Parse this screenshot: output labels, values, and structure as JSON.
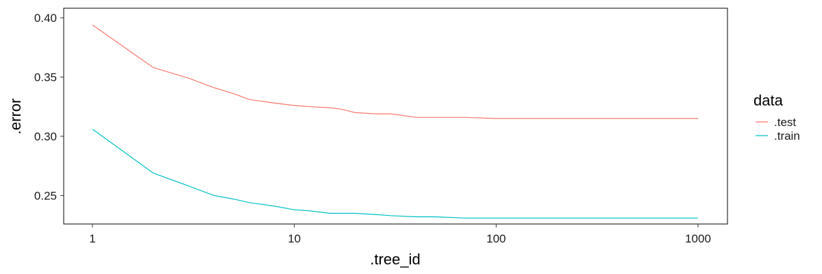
{
  "chart_data": {
    "type": "line",
    "xlabel": ".tree_id",
    "ylabel": ".error",
    "x_scale": "log10",
    "xlim": [
      1,
      1000
    ],
    "ylim": [
      0.23,
      0.4
    ],
    "x_ticks": [
      1,
      10,
      100,
      1000
    ],
    "x_tick_labels": [
      "1",
      "10",
      "100",
      "1000"
    ],
    "y_ticks": [
      0.25,
      0.3,
      0.35,
      0.4
    ],
    "y_tick_labels": [
      "0.25",
      "0.30",
      "0.35",
      "0.40"
    ],
    "grid": false,
    "legend": {
      "title": "data",
      "position": "right"
    },
    "series": [
      {
        "name": ".test",
        "color": "#F8766D",
        "x": [
          1,
          2,
          3,
          4,
          5,
          6,
          8,
          10,
          12,
          15,
          17,
          20,
          25,
          30,
          40,
          50,
          70,
          100,
          150,
          200,
          300,
          500,
          700,
          1000
        ],
        "y": [
          0.394,
          0.358,
          0.349,
          0.341,
          0.336,
          0.331,
          0.328,
          0.326,
          0.325,
          0.324,
          0.323,
          0.32,
          0.319,
          0.319,
          0.316,
          0.316,
          0.316,
          0.315,
          0.315,
          0.315,
          0.315,
          0.315,
          0.315,
          0.315
        ]
      },
      {
        "name": ".train",
        "color": "#00BFC4",
        "x": [
          1,
          2,
          3,
          4,
          5,
          6,
          8,
          10,
          12,
          15,
          20,
          25,
          30,
          40,
          50,
          70,
          100,
          150,
          200,
          300,
          500,
          700,
          1000
        ],
        "y": [
          0.306,
          0.269,
          0.258,
          0.25,
          0.247,
          0.244,
          0.241,
          0.238,
          0.237,
          0.235,
          0.235,
          0.234,
          0.233,
          0.232,
          0.232,
          0.231,
          0.231,
          0.231,
          0.231,
          0.231,
          0.231,
          0.231,
          0.231
        ]
      }
    ]
  }
}
